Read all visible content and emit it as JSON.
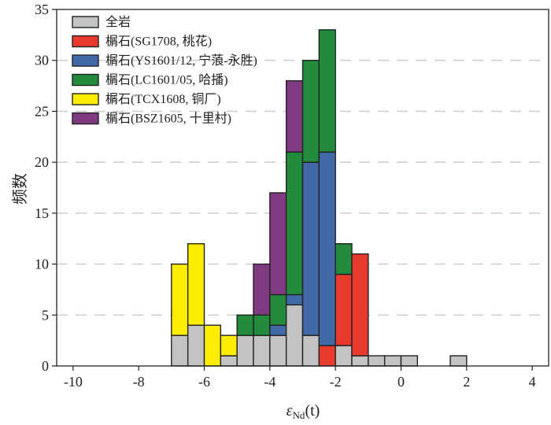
{
  "chart_data": {
    "type": "bar",
    "stacked": true,
    "xlabel": "εNd(t)",
    "xlabel_main": "ε",
    "xlabel_sub": "Nd",
    "xlabel_tail": "(t)",
    "ylabel": "频数",
    "xlim": [
      -10.5,
      4.5
    ],
    "ylim": [
      0,
      35
    ],
    "xticks": [
      -10,
      -8,
      -6,
      -4,
      -2,
      0,
      2,
      4
    ],
    "yticks": [
      0,
      5,
      10,
      15,
      20,
      25,
      30,
      35
    ],
    "grid": "horizontal dashed",
    "legend_position": "top-left",
    "bin_width": 0.5,
    "bin_starts": [
      -7.0,
      -6.5,
      -6.0,
      -5.5,
      -5.0,
      -4.5,
      -4.0,
      -3.5,
      -3.0,
      -2.5,
      -2.0,
      -1.5,
      -1.0,
      -0.5,
      0.0,
      1.5
    ],
    "series": [
      {
        "name": "全岩",
        "color": "#c3c3c3",
        "values": [
          3,
          4,
          0,
          1,
          3,
          3,
          3,
          6,
          3,
          0,
          2,
          1,
          1,
          1,
          1,
          1
        ]
      },
      {
        "name": "榍石(SG1708, 桃花)",
        "color": "#e8392f",
        "values": [
          0,
          0,
          0,
          0,
          0,
          0,
          0,
          0,
          0,
          2,
          7,
          10,
          0,
          0,
          0,
          0
        ]
      },
      {
        "name": "榍石(YS1601/12, 宁蒗-永胜)",
        "color": "#4169a8",
        "values": [
          0,
          0,
          0,
          0,
          0,
          0,
          1,
          1,
          17,
          19,
          0,
          0,
          0,
          0,
          0,
          0
        ]
      },
      {
        "name": "榍石(LC1601/05, 哈播)",
        "color": "#238b3c",
        "values": [
          0,
          0,
          0,
          0,
          2,
          2,
          3,
          14,
          10,
          12,
          3,
          0,
          0,
          0,
          0,
          0
        ]
      },
      {
        "name": "榍石(TCX1608, 铜厂)",
        "color": "#ffed00",
        "values": [
          7,
          8,
          4,
          2,
          0,
          0,
          0,
          0,
          0,
          0,
          0,
          0,
          0,
          0,
          0,
          0
        ]
      },
      {
        "name": "榍石(BSZ1605, 十里村)",
        "color": "#7f3a82",
        "values": [
          0,
          0,
          0,
          0,
          0,
          5,
          10,
          7,
          0,
          0,
          0,
          0,
          0,
          0,
          0,
          0
        ]
      }
    ]
  }
}
